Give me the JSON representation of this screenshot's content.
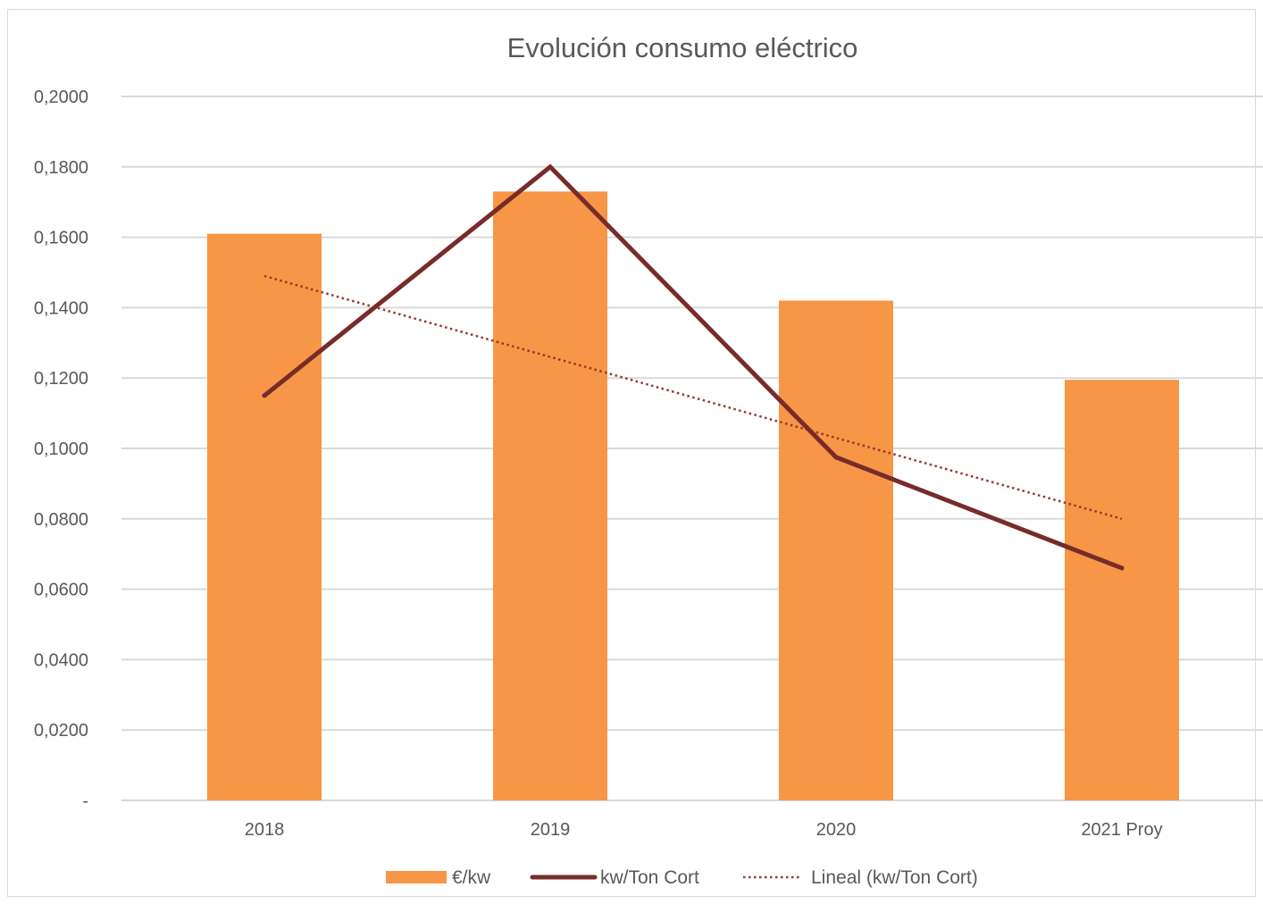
{
  "chart_data": {
    "type": "bar",
    "title": "Evolución consumo eléctrico",
    "categories": [
      "2018",
      "2019",
      "2020",
      "2021 Proy"
    ],
    "ylim": [
      0,
      0.2
    ],
    "yticks": [
      {
        "value": 0,
        "label": "-"
      },
      {
        "value": 0.02,
        "label": "0,0200"
      },
      {
        "value": 0.04,
        "label": "0,0400"
      },
      {
        "value": 0.06,
        "label": "0,0600"
      },
      {
        "value": 0.08,
        "label": "0,0800"
      },
      {
        "value": 0.1,
        "label": "0,1000"
      },
      {
        "value": 0.12,
        "label": "0,1200"
      },
      {
        "value": 0.14,
        "label": "0,1400"
      },
      {
        "value": 0.16,
        "label": "0,1600"
      },
      {
        "value": 0.18,
        "label": "0,1800"
      },
      {
        "value": 0.2,
        "label": "0,2000"
      }
    ],
    "grid": true,
    "legend_position": "bottom",
    "series": [
      {
        "name": "€/kw",
        "kind": "bar",
        "color": "#f79646",
        "values": [
          0.161,
          0.173,
          0.142,
          0.1195
        ]
      },
      {
        "name": "kw/Ton Cort",
        "kind": "line",
        "color": "#772c2a",
        "values": [
          0.115,
          0.18,
          0.0975,
          0.066
        ]
      },
      {
        "name": "Lineal (kw/Ton Cort)",
        "kind": "trendline",
        "style": "dotted",
        "color": "#953735",
        "values": [
          0.149,
          0.126,
          0.103,
          0.08
        ]
      }
    ]
  }
}
